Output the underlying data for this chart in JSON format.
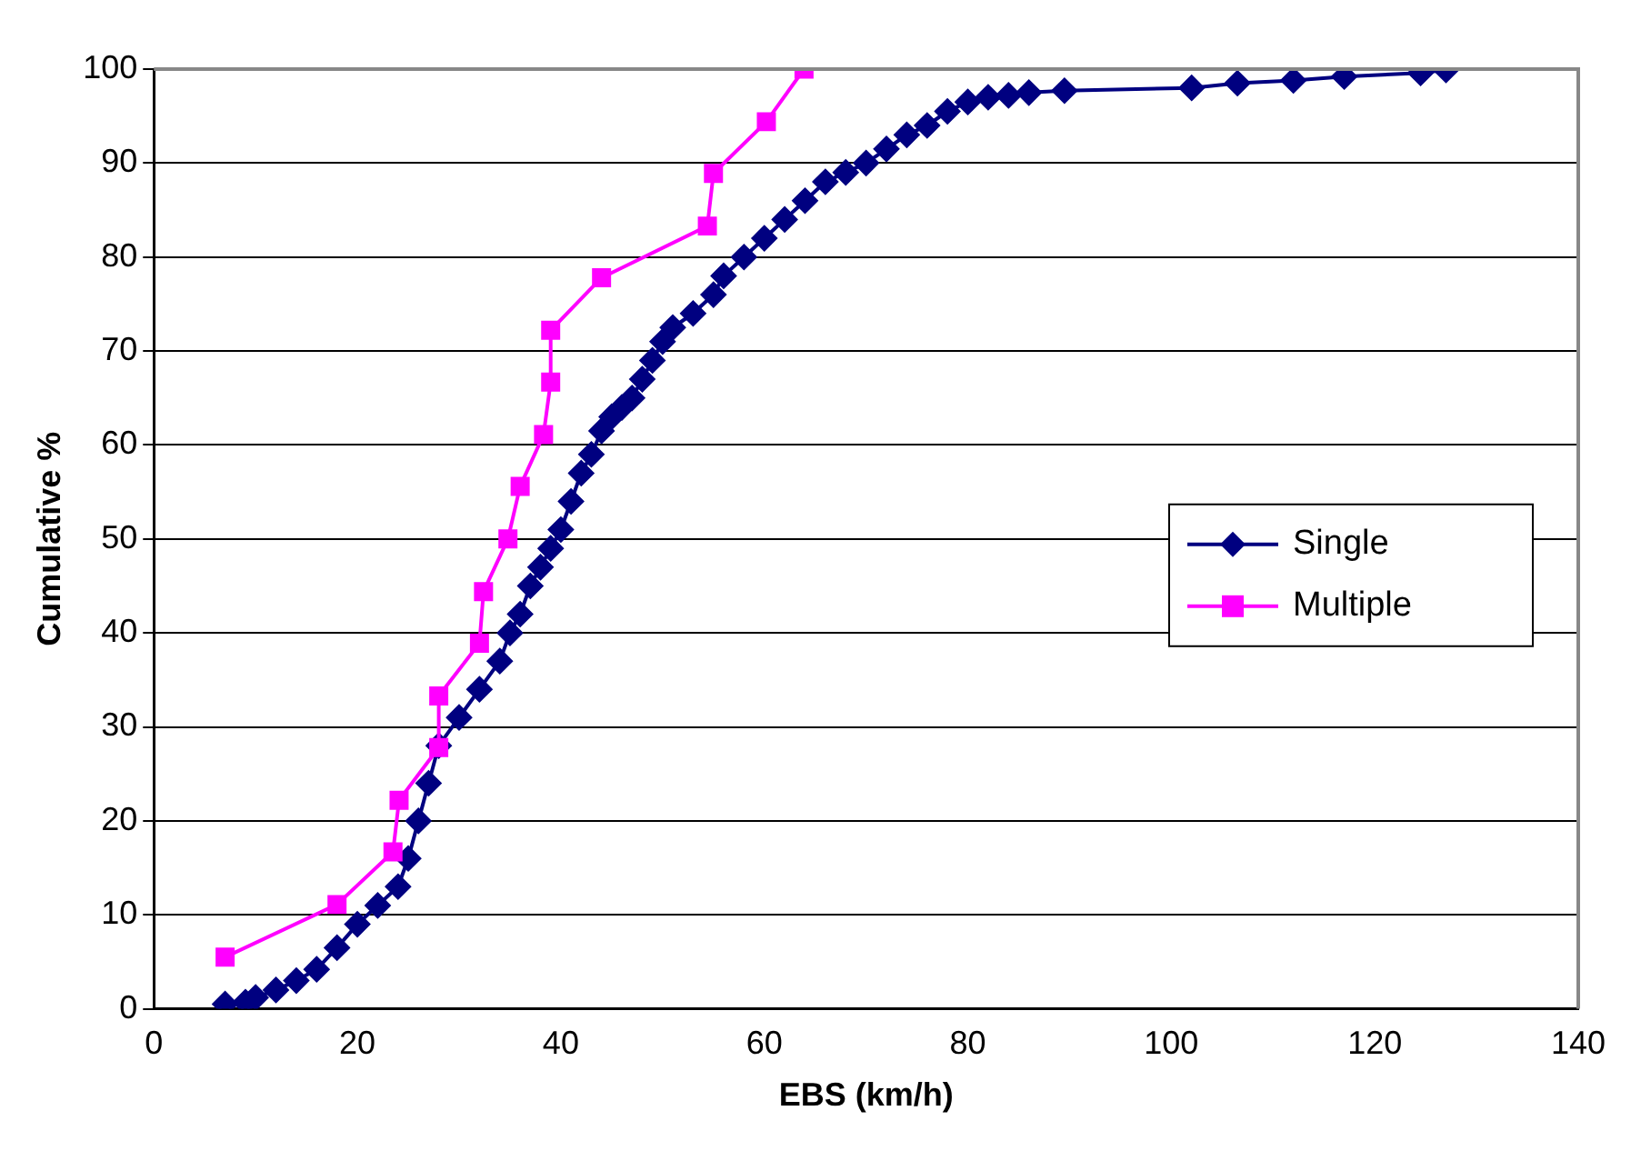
{
  "chart_data": {
    "type": "line",
    "xlabel": "EBS (km/h)",
    "ylabel": "Cumulative %",
    "xlim": [
      0,
      140
    ],
    "xticks": [
      0,
      20,
      40,
      60,
      80,
      100,
      120,
      140
    ],
    "ylim": [
      0,
      100
    ],
    "yticks": [
      0,
      10,
      20,
      30,
      40,
      50,
      60,
      70,
      80,
      90,
      100
    ],
    "grid": "y",
    "legend": "right",
    "series": [
      {
        "name": "Single",
        "color": "#000080",
        "marker": "diamond",
        "x": [
          7,
          9,
          10,
          12,
          14,
          16,
          18,
          20,
          22,
          24,
          25,
          26,
          27,
          28,
          30,
          32,
          34,
          35,
          36,
          37,
          38,
          39,
          40,
          41,
          42,
          43,
          44,
          45,
          46,
          47,
          48,
          49,
          50,
          51,
          53,
          55,
          56,
          58,
          60,
          62,
          64,
          66,
          68,
          70,
          72,
          74,
          76,
          78,
          80,
          82,
          84,
          86,
          89.5,
          102,
          106.5,
          112,
          117,
          124.5,
          127
        ],
        "values": [
          0.5,
          0.7,
          1.2,
          2,
          3,
          4.2,
          6.5,
          9,
          11,
          13,
          16,
          20,
          24,
          28,
          31,
          34,
          37,
          40,
          42,
          45,
          47,
          49,
          51,
          54,
          57,
          59,
          61.5,
          63,
          64,
          65,
          67,
          69,
          71,
          72.5,
          74,
          76,
          78,
          80,
          82,
          84,
          86,
          88,
          89,
          90,
          91.5,
          93,
          94,
          95.5,
          96.5,
          97,
          97.2,
          97.5,
          97.7,
          98,
          98.5,
          98.8,
          99.2,
          99.6,
          99.9
        ]
      },
      {
        "name": "Multiple",
        "color": "#ff00ff",
        "marker": "square",
        "x": [
          7,
          18,
          23.5,
          24.1,
          28,
          28,
          32,
          32.4,
          34.8,
          36,
          38.3,
          39,
          39,
          44,
          54.4,
          55,
          60.2,
          63.9
        ],
        "values": [
          5.5,
          11.1,
          16.7,
          22.2,
          27.8,
          33.3,
          38.9,
          44.4,
          50,
          55.6,
          61.1,
          66.7,
          72.2,
          77.8,
          83.3,
          88.9,
          94.4,
          100
        ]
      }
    ]
  }
}
